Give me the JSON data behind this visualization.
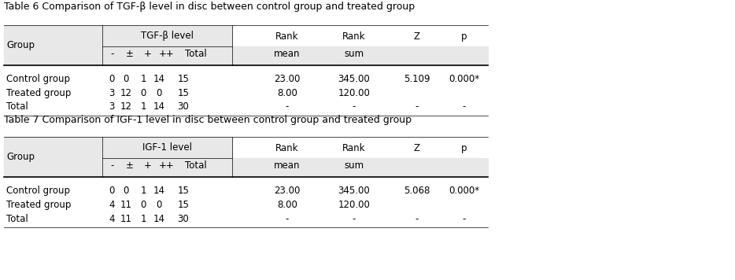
{
  "table6_title": "Table 6 Comparison of TGF-β level in disc between control group and treated group",
  "table7_title": "Table 7 Comparison of IGF-1 level in disc between control group and treated group",
  "table6_level_header": "TGF-β level",
  "table7_level_header": "IGF-1 level",
  "col_headers_row1": [
    "Group",
    "",
    "Rank",
    "Rank",
    "Z",
    "p"
  ],
  "col_headers_row2": [
    "",
    "-   ±   +   ++   Total",
    "mean",
    "sum",
    "",
    ""
  ],
  "table6_data": [
    [
      "Control group",
      "0   0   1   14   15",
      "23.00",
      "345.00",
      "5.109",
      "0.000*"
    ],
    [
      "Treated group",
      "3   12   0   0   15",
      "8.00",
      "120.00",
      "",
      ""
    ],
    [
      "Total",
      "3   12   1   14   30",
      "-",
      "-",
      "-",
      "-"
    ]
  ],
  "table7_data": [
    [
      "Control group",
      "0   0   1   14   15",
      "23.00",
      "345.00",
      "5.068",
      "0.000*"
    ],
    [
      "Treated group",
      "4   11   0   0   15",
      "8.00",
      "120.00",
      "",
      ""
    ],
    [
      "Total",
      "4   11   1   14   30",
      "-",
      "-",
      "-",
      "-"
    ]
  ],
  "header_bg": "#e8e8e8",
  "bg_color": "#ffffff",
  "text_color": "#000000",
  "font_size": 8.5,
  "title_font_size": 9.0
}
